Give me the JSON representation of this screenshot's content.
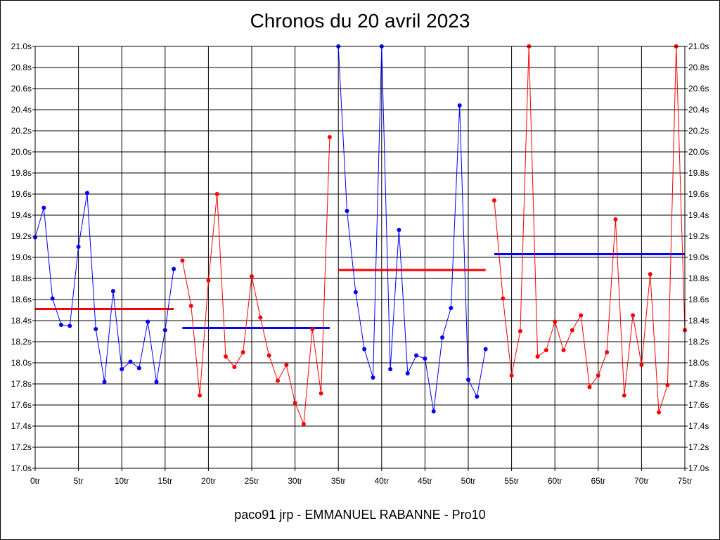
{
  "chart_data": {
    "type": "line",
    "title": "Chronos du 20 avril 2023",
    "footer": "paco91 jrp - EMMANUEL RABANNE - Pro10",
    "ylim": [
      17.0,
      21.0
    ],
    "y_step": 0.2,
    "xlim": [
      0,
      75
    ],
    "x_step": 5,
    "grid": true,
    "y_tick_labels": [
      "17.0s",
      "17.2s",
      "17.4s",
      "17.6s",
      "17.8s",
      "18.0s",
      "18.2s",
      "18.4s",
      "18.6s",
      "18.8s",
      "19.0s",
      "19.2s",
      "19.4s",
      "19.6s",
      "19.8s",
      "20.0s",
      "20.2s",
      "20.4s",
      "20.6s",
      "20.8s",
      "21.0s"
    ],
    "x_tick_labels": [
      "0tr",
      "5tr",
      "10tr",
      "15tr",
      "20tr",
      "25tr",
      "30tr",
      "35tr",
      "40tr",
      "45tr",
      "50tr",
      "55tr",
      "60tr",
      "65tr",
      "70tr",
      "75tr"
    ],
    "series": [
      {
        "color": "#0000ff",
        "x": [
          0,
          1,
          2,
          3,
          4,
          5,
          6,
          7,
          8,
          9,
          10,
          11,
          12,
          13,
          14,
          15,
          16
        ],
        "y": [
          19.19,
          19.47,
          18.61,
          18.36,
          18.35,
          19.1,
          19.61,
          18.32,
          17.82,
          18.68,
          17.94,
          18.01,
          17.95,
          18.39,
          17.82,
          18.31,
          18.89
        ]
      },
      {
        "color": "#ff0000",
        "x": [
          17,
          18,
          19,
          20,
          21,
          22,
          23,
          24,
          25,
          26,
          27,
          28,
          29,
          30,
          31,
          32,
          33,
          34
        ],
        "y": [
          18.97,
          18.54,
          17.69,
          18.78,
          19.6,
          18.06,
          17.96,
          18.1,
          18.82,
          18.43,
          18.07,
          17.83,
          17.98,
          17.62,
          17.42,
          18.32,
          17.71,
          20.14
        ]
      },
      {
        "color": "#0000ff",
        "x": [
          35,
          36,
          37,
          38,
          39,
          40,
          41,
          42,
          43,
          44,
          45,
          46,
          47,
          48,
          49,
          50,
          51,
          52
        ],
        "y": [
          21.0,
          19.44,
          18.67,
          18.13,
          17.86,
          21.0,
          17.94,
          19.26,
          17.9,
          18.07,
          18.04,
          17.54,
          18.24,
          18.52,
          20.44,
          17.84,
          17.68,
          18.13
        ]
      },
      {
        "color": "#ff0000",
        "x": [
          53,
          54,
          55,
          56,
          57,
          58,
          59,
          60,
          61,
          62,
          63,
          64,
          65,
          66,
          67,
          68,
          69,
          70,
          71,
          72,
          73,
          74,
          75
        ],
        "y": [
          19.54,
          18.61,
          17.88,
          18.3,
          21.0,
          18.06,
          18.12,
          18.39,
          18.12,
          18.31,
          18.45,
          17.77,
          17.88,
          18.1,
          19.36,
          17.69,
          18.45,
          17.98,
          18.84,
          17.53,
          17.79,
          21.0,
          18.31
        ]
      }
    ],
    "averages": [
      {
        "color": "#ff0000",
        "x_from": 0,
        "x_to": 16,
        "y": 18.51
      },
      {
        "color": "#0000ff",
        "x_from": 17,
        "x_to": 34,
        "y": 18.33
      },
      {
        "color": "#ff0000",
        "x_from": 35,
        "x_to": 52,
        "y": 18.88
      },
      {
        "color": "#0000ff",
        "x_from": 53,
        "x_to": 75,
        "y": 19.03
      }
    ]
  }
}
